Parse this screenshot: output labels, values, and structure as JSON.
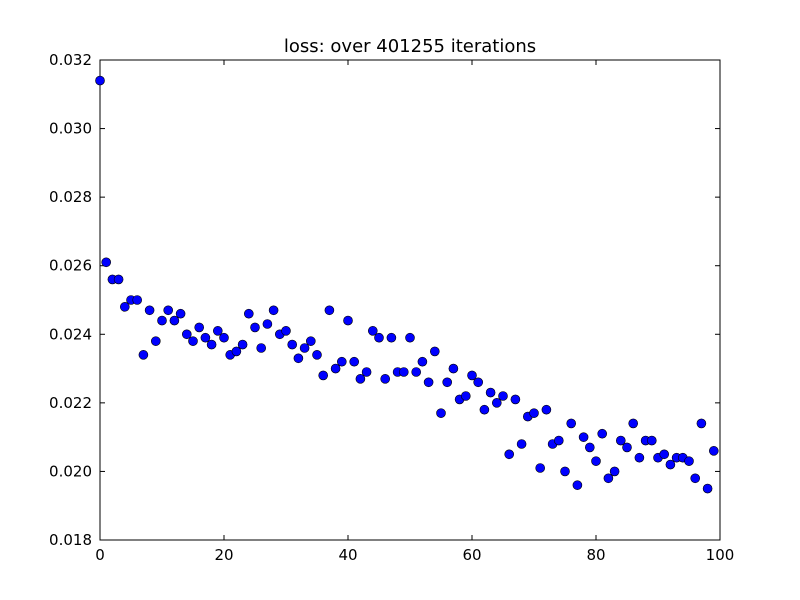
{
  "chart_data": {
    "type": "scatter",
    "title": "loss: over 401255 iterations",
    "xlabel": "",
    "ylabel": "",
    "xlim": [
      0,
      100
    ],
    "ylim": [
      0.018,
      0.032
    ],
    "xticks": [
      0,
      20,
      40,
      60,
      80,
      100
    ],
    "xtick_labels": [
      "0",
      "20",
      "40",
      "60",
      "80",
      "100"
    ],
    "yticks": [
      0.018,
      0.02,
      0.022,
      0.024,
      0.026,
      0.028,
      0.03,
      0.032
    ],
    "ytick_labels": [
      "0.018",
      "0.020",
      "0.022",
      "0.024",
      "0.026",
      "0.028",
      "0.030",
      "0.032"
    ],
    "grid": false,
    "marker_color": "#0000ff",
    "x": [
      0,
      1,
      2,
      3,
      4,
      5,
      6,
      7,
      8,
      9,
      10,
      11,
      12,
      13,
      14,
      15,
      16,
      17,
      18,
      19,
      20,
      21,
      22,
      23,
      24,
      25,
      26,
      27,
      28,
      29,
      30,
      31,
      32,
      33,
      34,
      35,
      36,
      37,
      38,
      39,
      40,
      41,
      42,
      43,
      44,
      45,
      46,
      47,
      48,
      49,
      50,
      51,
      52,
      53,
      54,
      55,
      56,
      57,
      58,
      59,
      60,
      61,
      62,
      63,
      64,
      65,
      66,
      67,
      68,
      69,
      70,
      71,
      72,
      73,
      74,
      75,
      76,
      77,
      78,
      79,
      80,
      81,
      82,
      83,
      84,
      85,
      86,
      87,
      88,
      89,
      90,
      91,
      92,
      93,
      94,
      95,
      96,
      97,
      98,
      99
    ],
    "y": [
      0.0314,
      0.0261,
      0.0256,
      0.0256,
      0.0248,
      0.025,
      0.025,
      0.0234,
      0.0247,
      0.0238,
      0.0244,
      0.0247,
      0.0244,
      0.0246,
      0.024,
      0.0238,
      0.0242,
      0.0239,
      0.0237,
      0.0241,
      0.0239,
      0.0234,
      0.0235,
      0.0237,
      0.0246,
      0.0242,
      0.0236,
      0.0243,
      0.0247,
      0.024,
      0.0241,
      0.0237,
      0.0233,
      0.0236,
      0.0238,
      0.0234,
      0.0228,
      0.0247,
      0.023,
      0.0232,
      0.0244,
      0.0232,
      0.0227,
      0.0229,
      0.0241,
      0.0239,
      0.0227,
      0.0239,
      0.0229,
      0.0229,
      0.0239,
      0.0229,
      0.0232,
      0.0226,
      0.0235,
      0.0217,
      0.0226,
      0.023,
      0.0221,
      0.0222,
      0.0228,
      0.0226,
      0.0218,
      0.0223,
      0.022,
      0.0222,
      0.0205,
      0.0221,
      0.0208,
      0.0216,
      0.0217,
      0.0201,
      0.0218,
      0.0208,
      0.0209,
      0.02,
      0.0214,
      0.0196,
      0.021,
      0.0207,
      0.0203,
      0.0211,
      0.0198,
      0.02,
      0.0209,
      0.0207,
      0.0214,
      0.0204,
      0.0209,
      0.0209,
      0.0204,
      0.0205,
      0.0202,
      0.0204,
      0.0204,
      0.0203,
      0.0198,
      0.0214,
      0.0195,
      0.0206
    ]
  }
}
